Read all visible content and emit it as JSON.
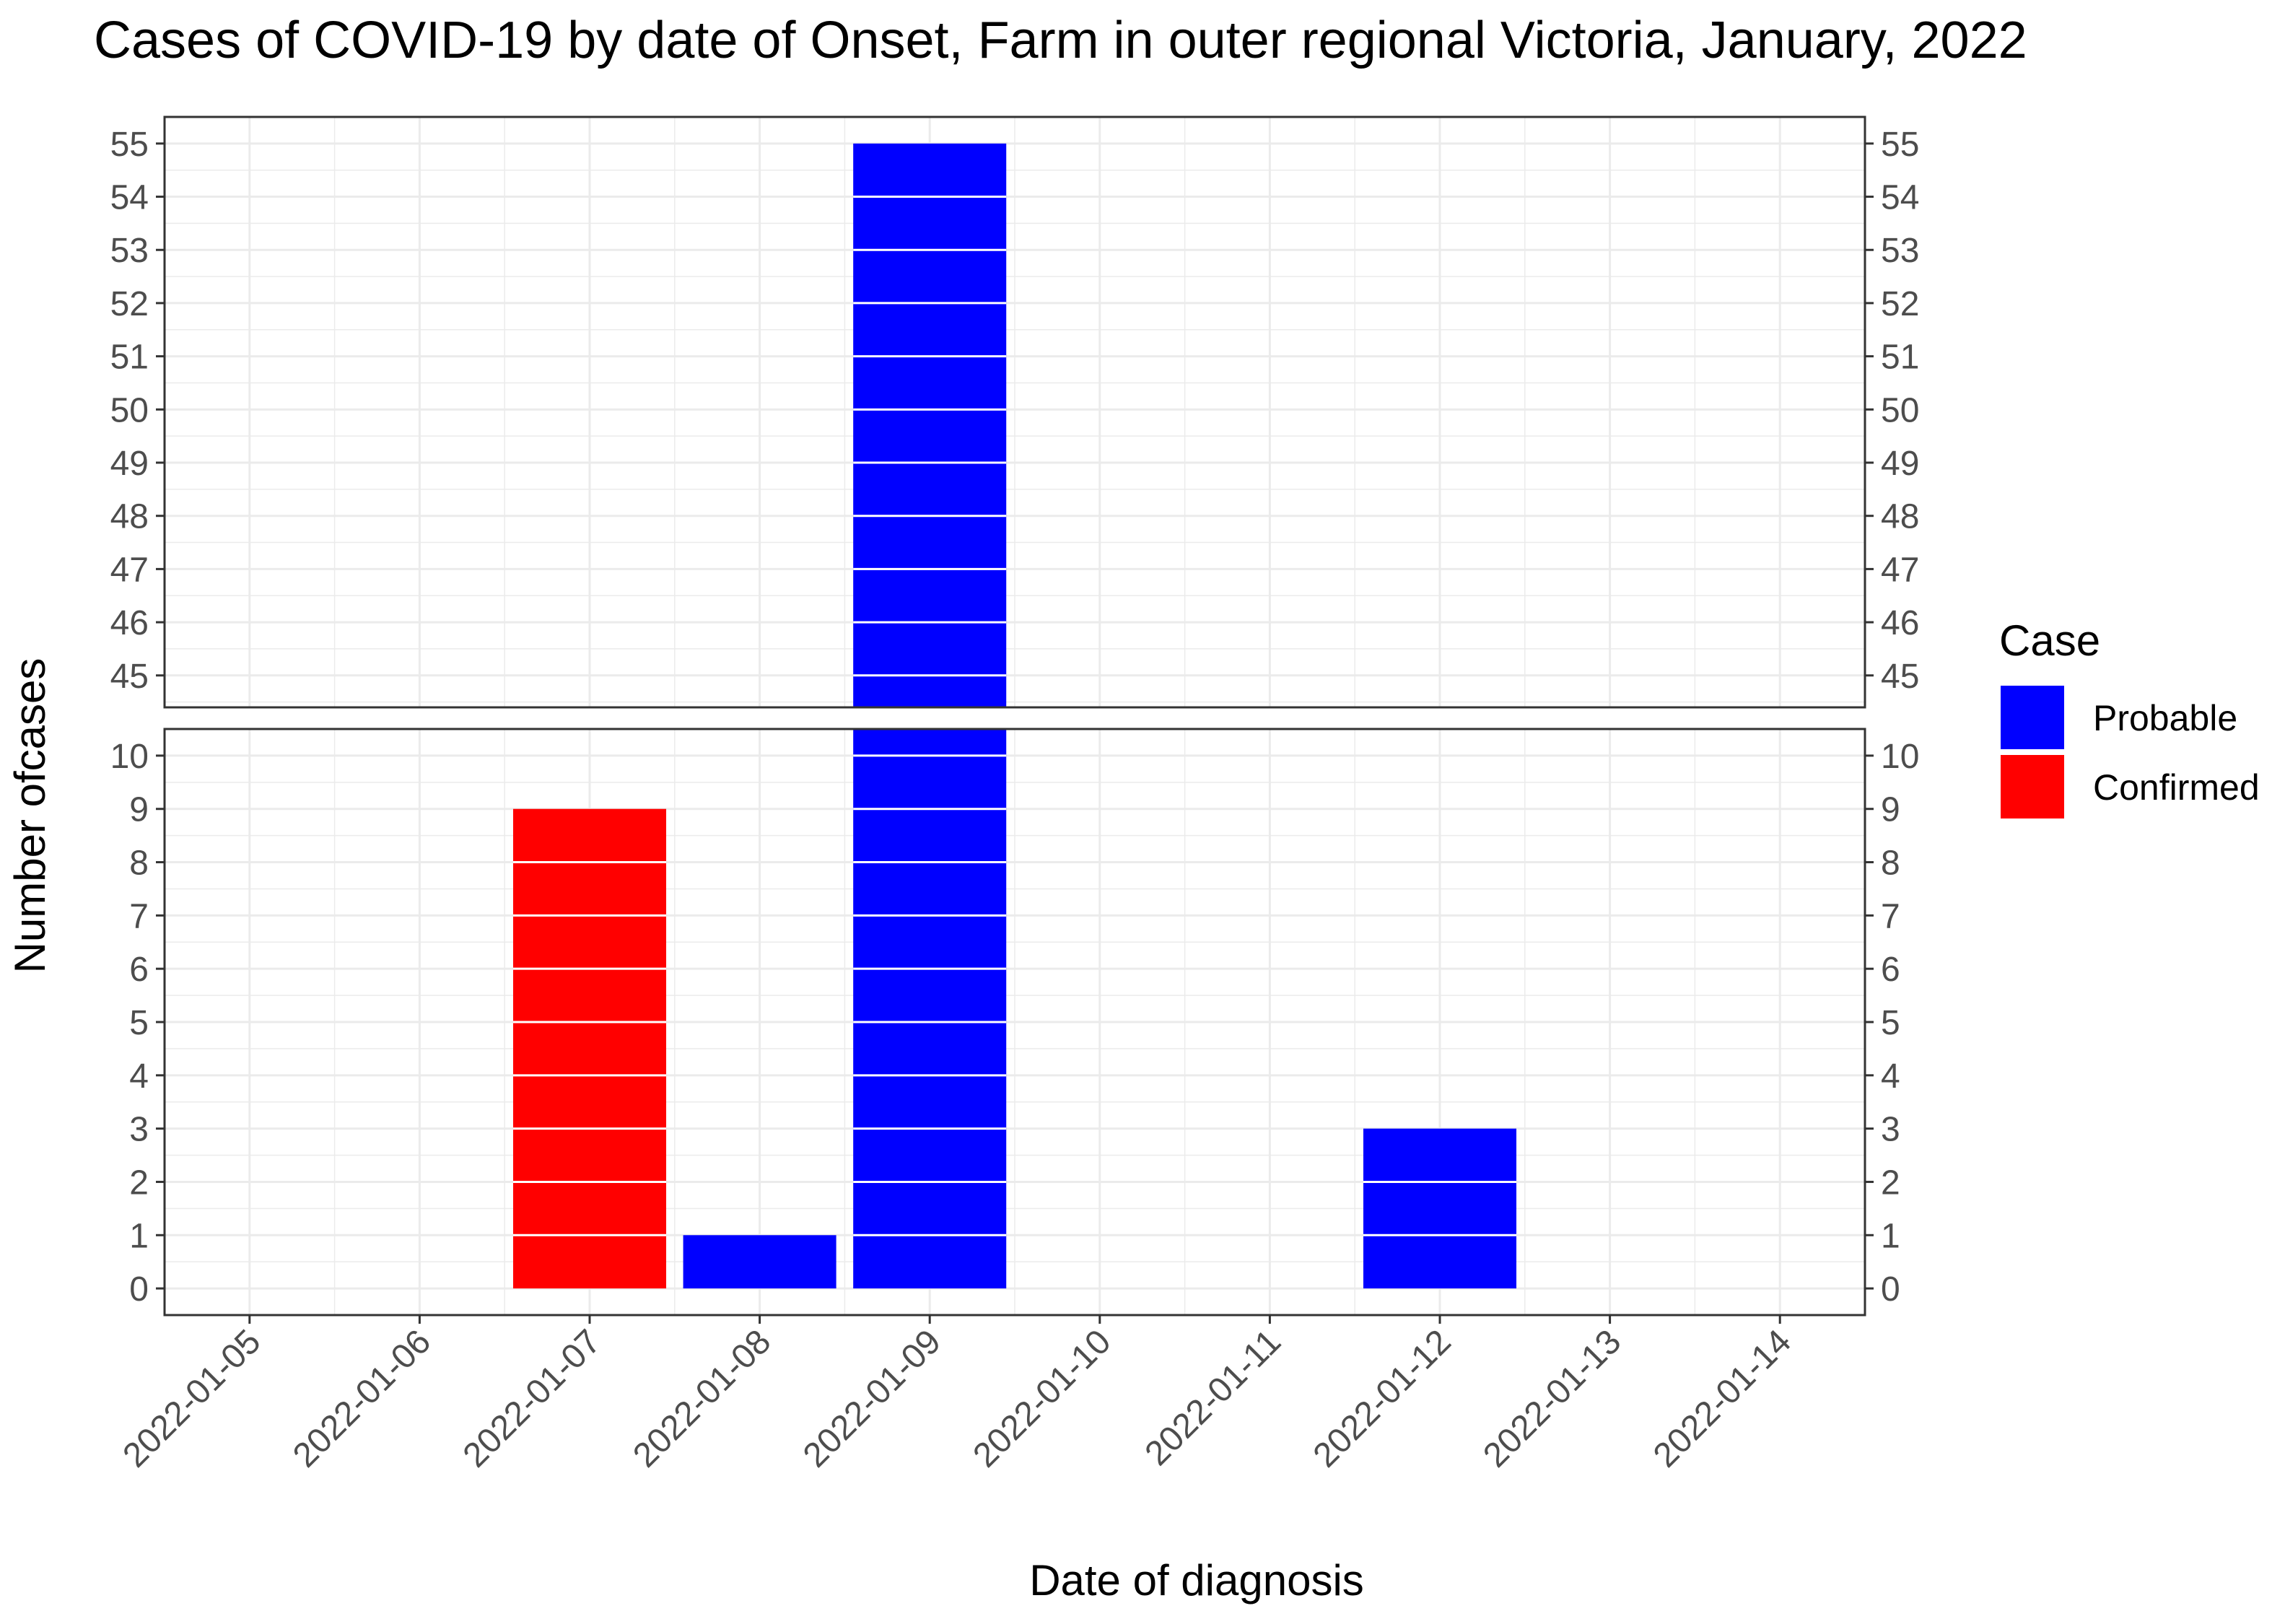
{
  "chart_data": {
    "type": "bar",
    "title": "Cases of COVID-19 by date of Onset, Farm in outer regional Victoria, January, 2022",
    "xlabel": "Date of diagnosis",
    "ylabel": "Number ofcases",
    "categories": [
      "2022-01-05",
      "2022-01-06",
      "2022-01-07",
      "2022-01-08",
      "2022-01-09",
      "2022-01-10",
      "2022-01-11",
      "2022-01-12",
      "2022-01-13",
      "2022-01-14"
    ],
    "series": [
      {
        "name": "Probable",
        "color": "#0000ff",
        "values": [
          0,
          0,
          0,
          1,
          55,
          0,
          0,
          3,
          0,
          0
        ]
      },
      {
        "name": "Confirmed",
        "color": "#ff0000",
        "values": [
          0,
          0,
          9,
          0,
          0,
          0,
          0,
          0,
          0,
          0
        ]
      }
    ],
    "stacked": true,
    "y_axis_break": true,
    "y_segments": [
      {
        "ylim": [
          44.4,
          55.5
        ],
        "ticks": [
          "45",
          "46",
          "47",
          "48",
          "49",
          "50",
          "51",
          "52",
          "53",
          "54",
          "55"
        ]
      },
      {
        "ylim": [
          -0.5,
          10.5
        ],
        "ticks": [
          "0",
          "1",
          "2",
          "3",
          "4",
          "5",
          "6",
          "7",
          "8",
          "9",
          "10"
        ]
      }
    ],
    "legend": {
      "title": "Case",
      "position": "right",
      "entries": [
        "Probable",
        "Confirmed"
      ]
    },
    "grid": true,
    "secondary_y_axis": true
  }
}
